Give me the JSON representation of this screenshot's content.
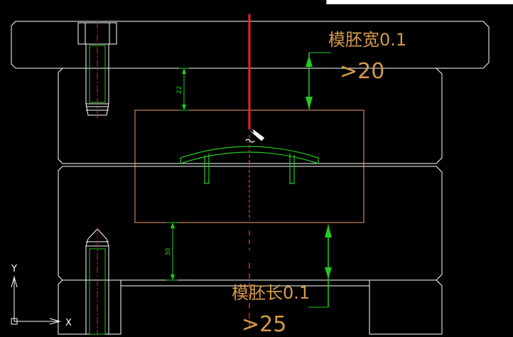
{
  "window": {
    "app": "CAD drawing viewport"
  },
  "annotations": {
    "width_label": "模胚宽0.1",
    "width_value": ">20",
    "length_label": "模胚长0.1",
    "length_value": ">25",
    "dim_top": "22",
    "dim_bottom": "30"
  },
  "ucs": {
    "x_label": "X",
    "y_label": "Y"
  },
  "colors": {
    "background": "#000000",
    "frame": "#ffffff",
    "cavity": "#f0a070",
    "part": "#22cc22",
    "center_line": "#dd2222",
    "annotation_text": "#d49a4a",
    "dimension": "#22cc22"
  },
  "icons": {
    "cursor": "pencil-cursor-icon",
    "ucs": "ucs-axis-icon"
  }
}
